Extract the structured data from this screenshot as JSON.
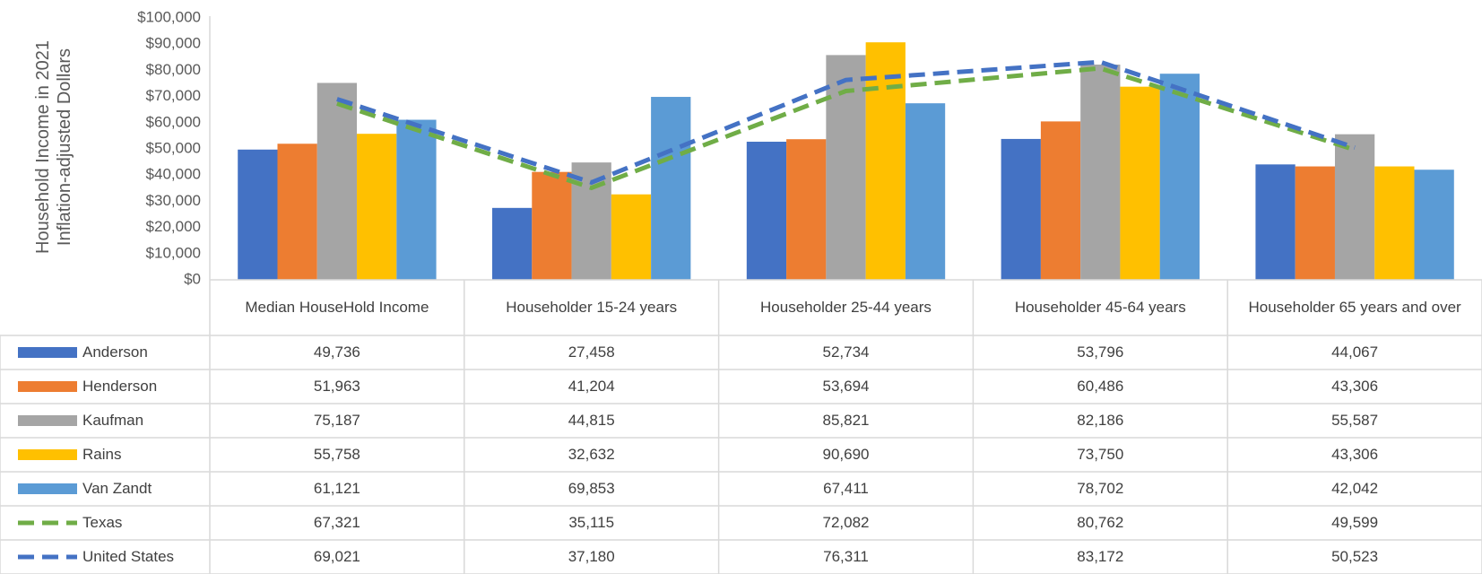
{
  "chart_data": {
    "type": "bar",
    "y_label": "Household Income in 2021 Inflation-adjusted Dollars",
    "categories": [
      "Median HouseHold Income",
      "Householder 15-24 years",
      "Householder 25-44 years",
      "Householder 45-64 years",
      "Householder 65 years and over"
    ],
    "series": [
      {
        "name": "Anderson",
        "type": "bar",
        "color": "#4472c4",
        "values": [
          49736,
          27458,
          52734,
          53796,
          44067
        ],
        "value_labels": [
          "49,736",
          "27,458",
          "52,734",
          "53,796",
          "44,067"
        ]
      },
      {
        "name": "Henderson",
        "type": "bar",
        "color": "#ed7d31",
        "values": [
          51963,
          41204,
          53694,
          60486,
          43306
        ],
        "value_labels": [
          "51,963",
          "41,204",
          "53,694",
          "60,486",
          "43,306"
        ]
      },
      {
        "name": "Kaufman",
        "type": "bar",
        "color": "#a5a5a5",
        "values": [
          75187,
          44815,
          85821,
          82186,
          55587
        ],
        "value_labels": [
          "75,187",
          "44,815",
          "85,821",
          "82,186",
          "55,587"
        ]
      },
      {
        "name": "Rains",
        "type": "bar",
        "color": "#ffc000",
        "values": [
          55758,
          32632,
          90690,
          73750,
          43306
        ],
        "value_labels": [
          "55,758",
          "32,632",
          "90,690",
          "73,750",
          "43,306"
        ]
      },
      {
        "name": "Van Zandt",
        "type": "bar",
        "color": "#5b9bd5",
        "values": [
          61121,
          69853,
          67411,
          78702,
          42042
        ],
        "value_labels": [
          "61,121",
          "69,853",
          "67,411",
          "78,702",
          "42,042"
        ]
      },
      {
        "name": "Texas",
        "type": "line",
        "dashed": true,
        "color": "#70ad47",
        "values": [
          67321,
          35115,
          72082,
          80762,
          49599
        ],
        "value_labels": [
          "67,321",
          "35,115",
          "72,082",
          "80,762",
          "49,599"
        ]
      },
      {
        "name": "United States",
        "type": "line",
        "dashed": true,
        "color": "#4472c4",
        "values": [
          69021,
          37180,
          76311,
          83172,
          50523
        ],
        "value_labels": [
          "69,021",
          "37,180",
          "76,311",
          "83,172",
          "50,523"
        ]
      }
    ],
    "ylim": [
      0,
      100000
    ],
    "yticks": [
      {
        "value": 0,
        "label": "$0"
      },
      {
        "value": 10000,
        "label": "$10,000"
      },
      {
        "value": 20000,
        "label": "$20,000"
      },
      {
        "value": 30000,
        "label": "$30,000"
      },
      {
        "value": 40000,
        "label": "$40,000"
      },
      {
        "value": 50000,
        "label": "$50,000"
      },
      {
        "value": 60000,
        "label": "$60,000"
      },
      {
        "value": 70000,
        "label": "$70,000"
      },
      {
        "value": 80000,
        "label": "$80,000"
      },
      {
        "value": 90000,
        "label": "$90,000"
      },
      {
        "value": 100000,
        "label": "$100,000"
      }
    ],
    "grid": false,
    "data_table": true
  }
}
